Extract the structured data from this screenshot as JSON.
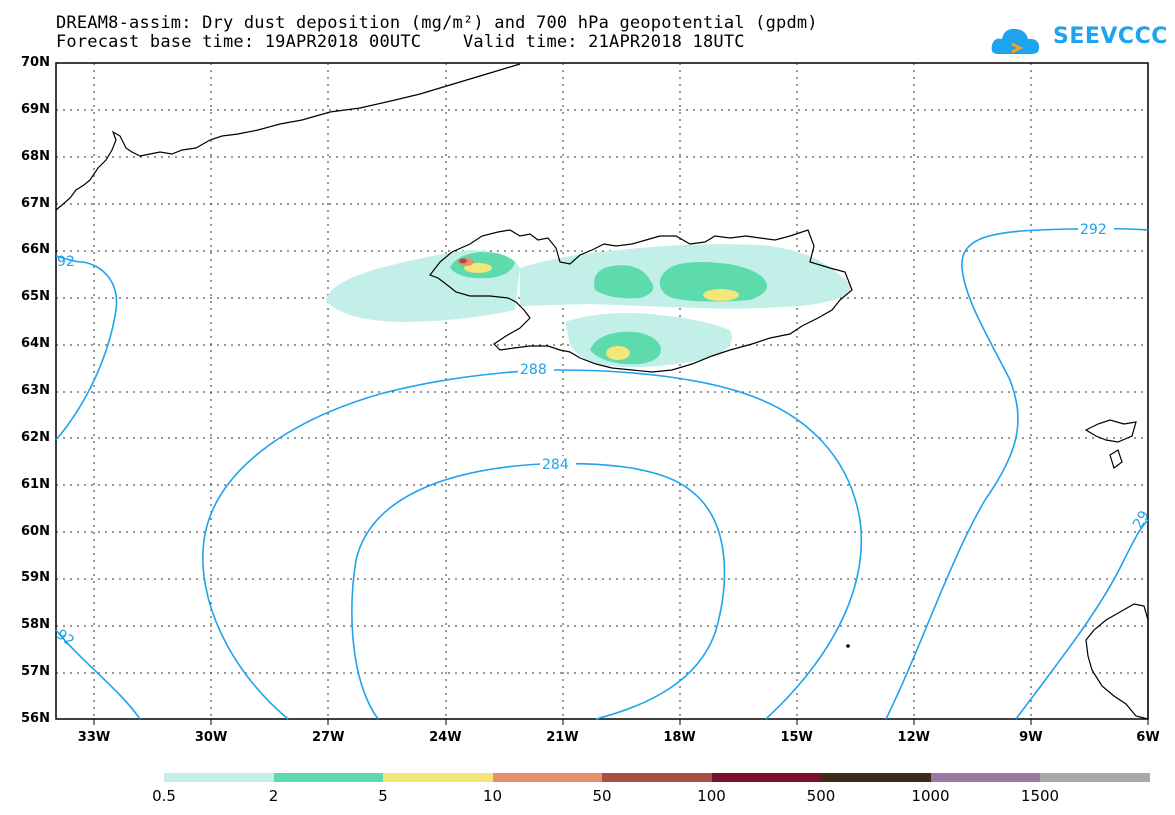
{
  "title_line1": "DREAM8-assim: Dry dust deposition (mg/m²) and 700 hPa geopotential (gpdm)",
  "title_line2": "Forecast base time: 19APR2018 00UTC    Valid time: 21APR2018 18UTC",
  "logo_text": "SEEVCCC",
  "lat_labels": [
    "70N",
    "69N",
    "68N",
    "67N",
    "66N",
    "65N",
    "64N",
    "63N",
    "62N",
    "61N",
    "60N",
    "59N",
    "58N",
    "57N",
    "56N"
  ],
  "lon_labels": [
    "33W",
    "30W",
    "27W",
    "24W",
    "21W",
    "18W",
    "15W",
    "12W",
    "9W",
    "6W"
  ],
  "contour_labels": {
    "c288": "288",
    "c284": "284",
    "c292": "292",
    "c292_left": "92",
    "c292_lower": "92",
    "c292_right": "29"
  },
  "legend": {
    "ticks": [
      "0.5",
      "2",
      "5",
      "10",
      "50",
      "100",
      "500",
      "1000",
      "1500"
    ],
    "colors": [
      "#c2f0e8",
      "#5ddbac",
      "#f3e779",
      "#e8906a",
      "#a94d47",
      "#7a0f2c",
      "#3d2a1b",
      "#9b78a3",
      "#a9a9a9"
    ]
  },
  "colors": {
    "contour": "#1ea3ee",
    "coast": "#000000",
    "dust_light": "#c2f0e8",
    "dust_mid": "#5ddbac",
    "dust_high": "#f3e779",
    "dust_higher": "#e8906a",
    "dust_max": "#a94d47"
  }
}
